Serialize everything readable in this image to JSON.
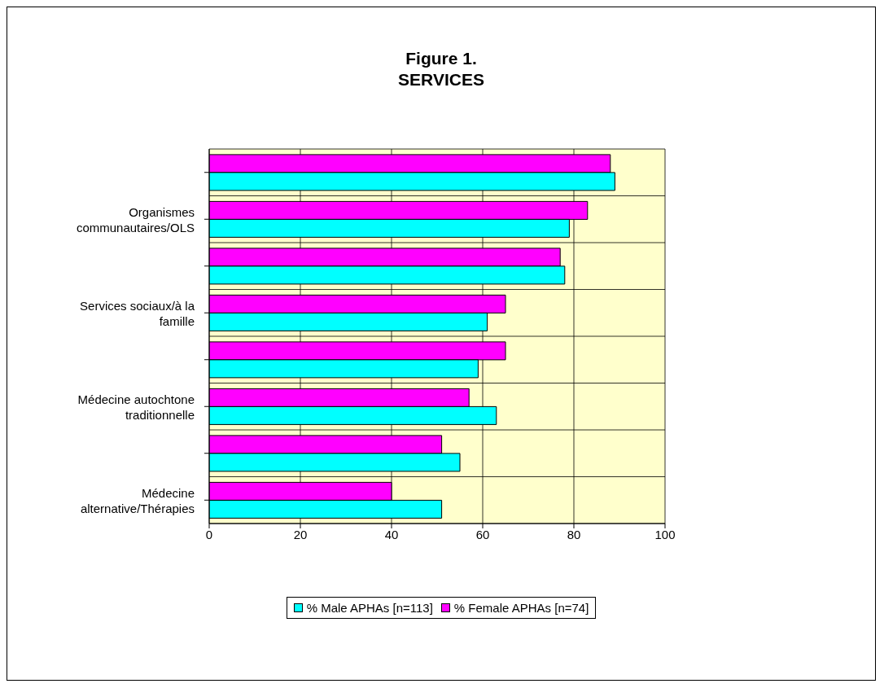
{
  "chart_data": {
    "type": "bar",
    "orientation": "horizontal",
    "title": "Figure 1.",
    "subtitle": "SERVICES",
    "categories": [
      null,
      "Organismes communautaires/OLS",
      null,
      "Services sociaux/à la famille",
      null,
      "Médecine autochtone traditionnelle",
      null,
      "Médecine alternative/Thérapies"
    ],
    "series": [
      {
        "name": "% Male APHAs [n=113]",
        "color": "#00ffff",
        "values": [
          89,
          79,
          78,
          61,
          59,
          63,
          55,
          51
        ]
      },
      {
        "name": "% Female APHAs [n=74]",
        "color": "#ff00ff",
        "values": [
          88,
          83,
          77,
          65,
          65,
          57,
          51,
          40
        ]
      }
    ],
    "xlim": [
      0,
      100
    ],
    "xticks": [
      0,
      20,
      40,
      60,
      80,
      100
    ],
    "grid": true,
    "legend": "bottom"
  }
}
